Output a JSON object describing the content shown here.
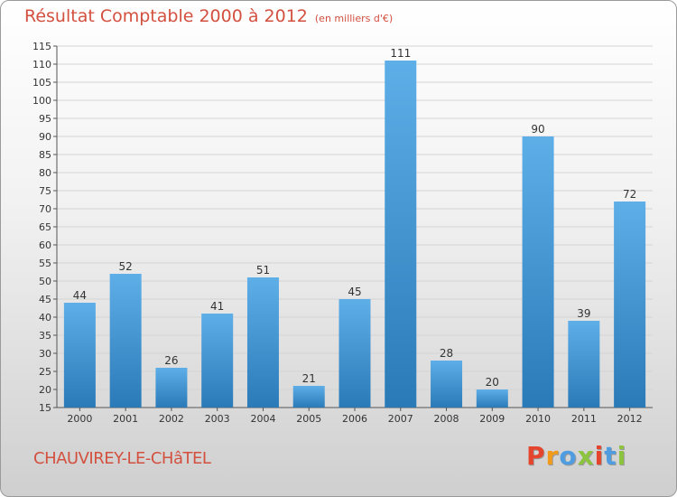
{
  "title": "Résultat Comptable 2000 à 2012",
  "subtitle": "(en milliers d'€)",
  "commune": "CHAUVIREY-LE-CHâTEL",
  "logo": {
    "letters": [
      "P",
      "r",
      "o",
      "x",
      "i",
      "t",
      "i"
    ],
    "colors": [
      "#e5452c",
      "#f29b1b",
      "#4f9de0",
      "#8cc43f",
      "#e5452c",
      "#4f9de0",
      "#8cc43f"
    ]
  },
  "colors": {
    "accent": "#d3503f",
    "bar_light": "#5eaee8",
    "bar_dark": "#2a7ab8"
  },
  "chart_data": {
    "type": "bar",
    "categories": [
      "2000",
      "2001",
      "2002",
      "2003",
      "2004",
      "2005",
      "2006",
      "2007",
      "2008",
      "2009",
      "2010",
      "2011",
      "2012"
    ],
    "values": [
      44,
      52,
      26,
      41,
      51,
      21,
      45,
      111,
      28,
      20,
      90,
      39,
      72
    ],
    "labels": [
      "44",
      "52",
      "26",
      "41",
      "51",
      "21",
      "45",
      "111",
      "28",
      "20",
      "90",
      "39",
      "72"
    ],
    "ylim": [
      15,
      115
    ],
    "yticks": [
      "15",
      "20",
      "25",
      "30",
      "35",
      "40",
      "45",
      "50",
      "55",
      "60",
      "65",
      "70",
      "75",
      "80",
      "85",
      "90",
      "95",
      "100",
      "105",
      "110",
      "115"
    ],
    "grid": true,
    "xlabel": "",
    "ylabel": ""
  }
}
